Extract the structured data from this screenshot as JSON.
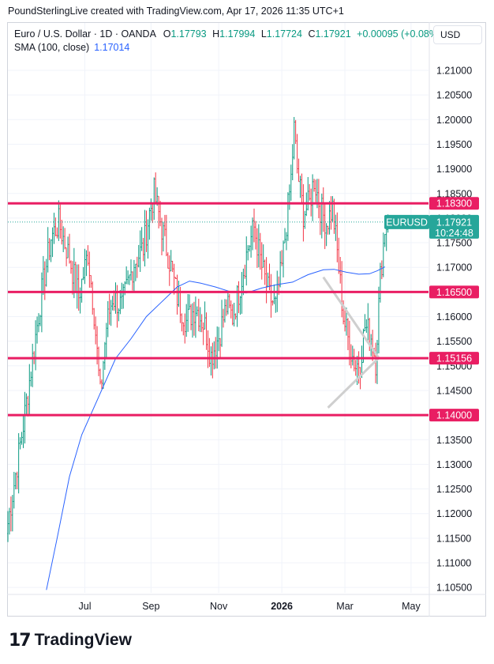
{
  "credit": "PoundSterlingLive created with TradingView.com, Apr 17, 2026 11:35 UTC+1",
  "header": {
    "instrument": "Euro / U.S. Dollar · 1D · OANDA",
    "open_label": "O",
    "open": "1.17793",
    "high_label": "H",
    "high": "1.17994",
    "low_label": "L",
    "low": "1.17724",
    "close_label": "C",
    "close": "1.17921",
    "change": "+0.00095 (+0.08%)"
  },
  "sma": {
    "label": "SMA (100, close)",
    "value": "1.17014"
  },
  "currency_button": "USD",
  "footer": {
    "brand": "TradingView"
  },
  "colors": {
    "up": "#089981",
    "down": "#f23645",
    "level": "#e91e63",
    "sma": "#2962ff",
    "price_tag": "#26a69a"
  },
  "chart_data": {
    "type": "candlestick",
    "symbol": "EURUSD",
    "timeframe": "1D",
    "ylim": [
      1.1015,
      1.2155
    ],
    "y_ticks": [
      "1.21000",
      "1.20500",
      "1.20000",
      "1.19500",
      "1.19000",
      "1.18500",
      "1.18000",
      "1.17500",
      "1.17000",
      "1.16500",
      "1.16000",
      "1.15500",
      "1.15000",
      "1.14500",
      "1.14000",
      "1.13500",
      "1.13000",
      "1.12500",
      "1.12000",
      "1.11500",
      "1.11000",
      "1.10500"
    ],
    "x_ticks": [
      {
        "label": "Jul",
        "index": 50
      },
      {
        "label": "Sep",
        "index": 93
      },
      {
        "label": "Nov",
        "index": 137
      },
      {
        "label": "2026",
        "index": 178
      },
      {
        "label": "Mar",
        "index": 219
      },
      {
        "label": "May",
        "index": 262
      }
    ],
    "levels": [
      {
        "label": "1.18300",
        "value": 1.183
      },
      {
        "label": "1.16500",
        "value": 1.165
      },
      {
        "label": "1.15156",
        "value": 1.15156
      },
      {
        "label": "1.14000",
        "value": 1.14
      }
    ],
    "last_price": {
      "symbol": "EURUSD",
      "price": "1.17921",
      "countdown": "10:24:48",
      "value": 1.17921
    },
    "sma": {
      "name": "SMA (100, close)",
      "points": [
        [
          25,
          1.1045
        ],
        [
          32,
          1.115
        ],
        [
          40,
          1.1275
        ],
        [
          48,
          1.136
        ],
        [
          58,
          1.143
        ],
        [
          70,
          1.1515
        ],
        [
          80,
          1.1555
        ],
        [
          90,
          1.16
        ],
        [
          100,
          1.163
        ],
        [
          110,
          1.166
        ],
        [
          118,
          1.1672
        ],
        [
          125,
          1.1668
        ],
        [
          135,
          1.166
        ],
        [
          145,
          1.165
        ],
        [
          155,
          1.1648
        ],
        [
          165,
          1.1658
        ],
        [
          175,
          1.1665
        ],
        [
          185,
          1.167
        ],
        [
          195,
          1.1685
        ],
        [
          205,
          1.1695
        ],
        [
          212,
          1.1696
        ],
        [
          220,
          1.169
        ],
        [
          228,
          1.1686
        ],
        [
          235,
          1.1687
        ],
        [
          240,
          1.1693
        ],
        [
          245,
          1.1701
        ]
      ]
    },
    "candle_series": {
      "start_index": 0,
      "anchors": [
        [
          0,
          1.118
        ],
        [
          10,
          1.138
        ],
        [
          18,
          1.156
        ],
        [
          22,
          1.165
        ],
        [
          28,
          1.176
        ],
        [
          33,
          1.179
        ],
        [
          40,
          1.172
        ],
        [
          46,
          1.164
        ],
        [
          52,
          1.173
        ],
        [
          56,
          1.161
        ],
        [
          60,
          1.144
        ],
        [
          64,
          1.158
        ],
        [
          68,
          1.164
        ],
        [
          74,
          1.162
        ],
        [
          82,
          1.171
        ],
        [
          88,
          1.174
        ],
        [
          92,
          1.181
        ],
        [
          95,
          1.185
        ],
        [
          100,
          1.178
        ],
        [
          106,
          1.17
        ],
        [
          110,
          1.164
        ],
        [
          116,
          1.159
        ],
        [
          122,
          1.162
        ],
        [
          128,
          1.158
        ],
        [
          132,
          1.152
        ],
        [
          137,
          1.156
        ],
        [
          142,
          1.162
        ],
        [
          146,
          1.16
        ],
        [
          150,
          1.165
        ],
        [
          156,
          1.174
        ],
        [
          160,
          1.178
        ],
        [
          165,
          1.17
        ],
        [
          170,
          1.164
        ],
        [
          174,
          1.162
        ],
        [
          178,
          1.17
        ],
        [
          181,
          1.179
        ],
        [
          184,
          1.188
        ],
        [
          186,
          1.198
        ],
        [
          188,
          1.19
        ],
        [
          192,
          1.181
        ],
        [
          196,
          1.183
        ],
        [
          199,
          1.188
        ],
        [
          203,
          1.182
        ],
        [
          207,
          1.179
        ],
        [
          211,
          1.182
        ],
        [
          214,
          1.173
        ],
        [
          218,
          1.16
        ],
        [
          222,
          1.154
        ],
        [
          226,
          1.15
        ],
        [
          229,
          1.151
        ],
        [
          232,
          1.158
        ],
        [
          236,
          1.156
        ],
        [
          239,
          1.151
        ],
        [
          242,
          1.168
        ],
        [
          245,
          1.178
        ],
        [
          247,
          1.1792
        ]
      ]
    }
  }
}
